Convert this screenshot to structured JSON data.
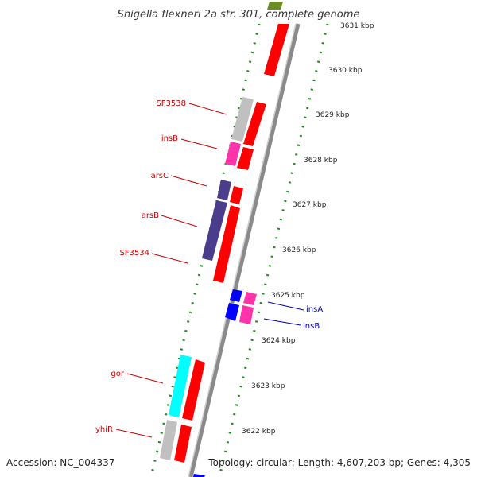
{
  "title": "Shigella flexneri 2a str. 301, complete genome",
  "footer": {
    "accession": "Accession: NC_004337",
    "topology": "Topology: circular; Length: 4,607,203 bp; Genes: 4,305"
  },
  "ticks": [
    {
      "label": "3631 kbp"
    },
    {
      "label": "3630 kbp"
    },
    {
      "label": "3629 kbp"
    },
    {
      "label": "3628 kbp"
    },
    {
      "label": "3627 kbp"
    },
    {
      "label": "3626 kbp"
    },
    {
      "label": "3625 kbp"
    },
    {
      "label": "3624 kbp"
    },
    {
      "label": "3623 kbp"
    },
    {
      "label": "3622 kbp"
    }
  ],
  "gene_labels_left": [
    "SF3538",
    "insB",
    "arsC",
    "arsB",
    "SF3534",
    "gor",
    "yhiR"
  ],
  "gene_labels_right": [
    "insA",
    "insB"
  ],
  "colors": {
    "forward_cds": "#ff0000",
    "pseudo": "#c0c0c0",
    "insertion": "#ff33aa",
    "arsB": "#4b3c8c",
    "gor": "#00ffff",
    "reverse_cds": "#0000ff",
    "tick": "#1a8c1a",
    "backbone": "#8a8a8a",
    "left_label": "#cc0000",
    "right_label": "#0000aa"
  }
}
